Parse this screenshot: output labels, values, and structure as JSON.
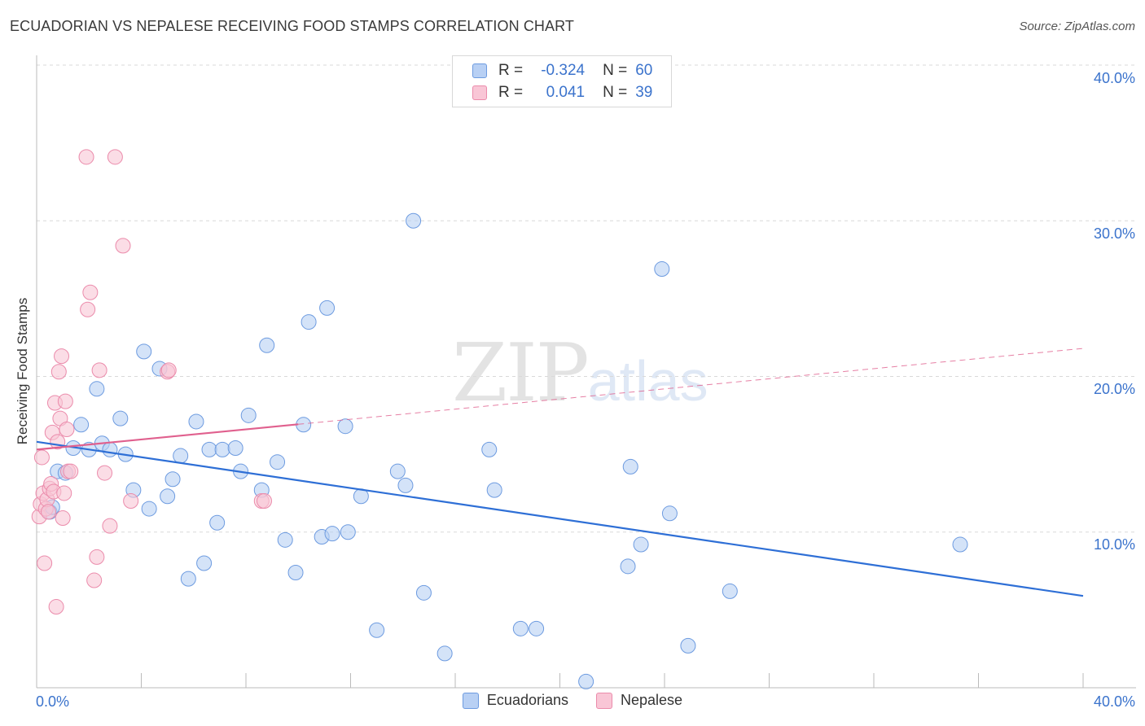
{
  "header": {
    "title": "ECUADORIAN VS NEPALESE RECEIVING FOOD STAMPS CORRELATION CHART",
    "source": "Source: ZipAtlas.com"
  },
  "legend": {
    "rows": [
      {
        "r_label": "R =",
        "r_value": "-0.324",
        "n_label": "N =",
        "n_value": "60"
      },
      {
        "r_label": "R =",
        "r_value": "0.041",
        "n_label": "N =",
        "n_value": "39"
      }
    ]
  },
  "watermark": {
    "zip": "ZIP",
    "atlas": "atlas"
  },
  "colors": {
    "ecuadorians_fill": "#b8d0f4",
    "ecuadorians_stroke": "#6d9be0",
    "ecuadorians_line": "#2e6fd6",
    "nepalese_fill": "#f9c6d6",
    "nepalese_stroke": "#eb8bab",
    "nepalese_line": "#e0608e",
    "tick_text": "#3b73cc",
    "grid": "#d9d9d9"
  },
  "chart_data": {
    "type": "scatter",
    "title": "ECUADORIAN VS NEPALESE RECEIVING FOOD STAMPS CORRELATION CHART",
    "xlabel": "",
    "ylabel": "Receiving Food Stamps",
    "xlim": [
      0,
      40
    ],
    "ylim": [
      0,
      40
    ],
    "x_tick_labels": [
      "0.0%",
      "40.0%"
    ],
    "y_tick_labels": [
      "10.0%",
      "20.0%",
      "30.0%",
      "40.0%"
    ],
    "y_ticks": [
      10,
      20,
      30,
      40
    ],
    "grid": "horizontal dashed",
    "legend_position": "bottom-center",
    "series": [
      {
        "name": "Ecuadorians",
        "points": [
          [
            0.5,
            11.3
          ],
          [
            0.6,
            11.6
          ],
          [
            0.8,
            13.9
          ],
          [
            1.1,
            13.8
          ],
          [
            1.4,
            15.4
          ],
          [
            1.7,
            16.9
          ],
          [
            2.0,
            15.3
          ],
          [
            2.3,
            19.2
          ],
          [
            2.5,
            15.7
          ],
          [
            2.8,
            15.3
          ],
          [
            3.2,
            17.3
          ],
          [
            3.4,
            15.0
          ],
          [
            3.7,
            12.7
          ],
          [
            4.1,
            21.6
          ],
          [
            4.3,
            11.5
          ],
          [
            4.7,
            20.5
          ],
          [
            5.0,
            12.3
          ],
          [
            5.2,
            13.4
          ],
          [
            5.5,
            14.9
          ],
          [
            5.8,
            7.0
          ],
          [
            6.1,
            17.1
          ],
          [
            6.4,
            8.0
          ],
          [
            6.6,
            15.3
          ],
          [
            6.9,
            10.6
          ],
          [
            7.1,
            15.3
          ],
          [
            7.6,
            15.4
          ],
          [
            7.8,
            13.9
          ],
          [
            8.1,
            17.5
          ],
          [
            8.6,
            12.7
          ],
          [
            8.8,
            22.0
          ],
          [
            9.2,
            14.5
          ],
          [
            9.5,
            9.5
          ],
          [
            9.9,
            7.4
          ],
          [
            10.2,
            16.9
          ],
          [
            10.4,
            23.5
          ],
          [
            10.9,
            9.7
          ],
          [
            11.1,
            24.4
          ],
          [
            11.3,
            9.9
          ],
          [
            11.8,
            16.8
          ],
          [
            11.9,
            10.0
          ],
          [
            12.4,
            12.3
          ],
          [
            13.0,
            3.7
          ],
          [
            13.8,
            13.9
          ],
          [
            14.1,
            13.0
          ],
          [
            14.4,
            30.0
          ],
          [
            14.8,
            6.1
          ],
          [
            15.6,
            2.2
          ],
          [
            17.3,
            15.3
          ],
          [
            17.5,
            12.7
          ],
          [
            18.5,
            3.8
          ],
          [
            19.1,
            3.8
          ],
          [
            21.0,
            0.4
          ],
          [
            22.6,
            7.8
          ],
          [
            22.7,
            14.2
          ],
          [
            23.1,
            9.2
          ],
          [
            23.9,
            26.9
          ],
          [
            24.2,
            11.2
          ],
          [
            24.9,
            2.7
          ],
          [
            26.5,
            6.2
          ],
          [
            35.3,
            9.2
          ]
        ],
        "trend": {
          "x0": 0,
          "y0": 15.8,
          "x1": 40,
          "y1": 5.9
        }
      },
      {
        "name": "Nepalese",
        "points": [
          [
            0.1,
            11.0
          ],
          [
            0.15,
            11.8
          ],
          [
            0.2,
            14.8
          ],
          [
            0.25,
            12.5
          ],
          [
            0.3,
            8.0
          ],
          [
            0.35,
            11.5
          ],
          [
            0.4,
            12.1
          ],
          [
            0.45,
            11.3
          ],
          [
            0.5,
            12.8
          ],
          [
            0.55,
            13.1
          ],
          [
            0.6,
            16.4
          ],
          [
            0.65,
            12.6
          ],
          [
            0.7,
            18.3
          ],
          [
            0.75,
            5.2
          ],
          [
            0.8,
            15.8
          ],
          [
            0.85,
            20.3
          ],
          [
            0.9,
            17.3
          ],
          [
            0.95,
            21.3
          ],
          [
            1.0,
            10.9
          ],
          [
            1.05,
            12.5
          ],
          [
            1.1,
            18.4
          ],
          [
            1.15,
            16.6
          ],
          [
            1.2,
            13.9
          ],
          [
            1.3,
            13.9
          ],
          [
            1.9,
            34.1
          ],
          [
            1.95,
            24.3
          ],
          [
            2.05,
            25.4
          ],
          [
            2.2,
            6.9
          ],
          [
            2.3,
            8.4
          ],
          [
            2.4,
            20.4
          ],
          [
            2.6,
            13.8
          ],
          [
            2.8,
            10.4
          ],
          [
            3.0,
            34.1
          ],
          [
            3.3,
            28.4
          ],
          [
            5.0,
            20.3
          ],
          [
            5.05,
            20.4
          ],
          [
            8.6,
            12.0
          ],
          [
            8.7,
            12.0
          ],
          [
            3.6,
            12.0
          ]
        ],
        "trend": {
          "x0": 0,
          "y0": 15.3,
          "x1": 40,
          "y1": 21.8,
          "solid_until_x": 10
        }
      }
    ]
  }
}
